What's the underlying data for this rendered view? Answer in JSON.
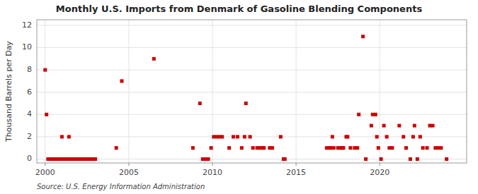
{
  "chart_data": {
    "type": "scatter",
    "title": "Monthly U.S. Imports from Denmark of Gasoline Blending Components",
    "ylabel": "Thousand Barrels per Day",
    "annotations": [
      "Source: U.S. Energy Information Administration"
    ],
    "color": "#cc0000",
    "marker": "square",
    "grid": true,
    "xlim": [
      1999.5,
      2025.2
    ],
    "xticks": [
      2000,
      2005,
      2010,
      2015,
      2020
    ],
    "ylim": [
      -0.35,
      12.5
    ],
    "yticks": [
      0,
      2,
      4,
      6,
      8,
      10,
      12
    ],
    "x": [
      2000.0,
      2000.08,
      2000.17,
      2000.25,
      2000.33,
      2000.42,
      2000.5,
      2000.58,
      2000.67,
      2000.75,
      2000.83,
      2001.0,
      2001.08,
      2001.17,
      2001.25,
      2001.33,
      2001.42,
      2001.5,
      2001.58,
      2001.67,
      2001.75,
      2001.83,
      2001.92,
      2002.0,
      2002.08,
      2002.17,
      2002.25,
      2002.33,
      2002.42,
      2002.5,
      2002.58,
      2002.67,
      2002.75,
      2002.83,
      2002.92,
      2003.0,
      2001.0,
      2001.42,
      2004.25,
      2004.58,
      2006.5,
      2008.83,
      2009.25,
      2009.42,
      2009.58,
      2009.75,
      2009.92,
      2010.08,
      2010.25,
      2010.42,
      2010.58,
      2011.0,
      2011.25,
      2011.5,
      2011.75,
      2011.92,
      2012.0,
      2012.25,
      2012.42,
      2012.67,
      2012.83,
      2013.0,
      2013.08,
      2013.42,
      2013.58,
      2014.08,
      2014.25,
      2014.33,
      2016.83,
      2017.0,
      2017.08,
      2017.17,
      2017.25,
      2017.5,
      2017.67,
      2017.75,
      2017.83,
      2018.0,
      2018.08,
      2018.25,
      2018.5,
      2018.67,
      2018.75,
      2019.0,
      2019.17,
      2019.5,
      2019.58,
      2019.75,
      2019.83,
      2019.92,
      2020.08,
      2020.25,
      2020.42,
      2020.58,
      2020.75,
      2021.17,
      2021.42,
      2021.58,
      2021.83,
      2022.0,
      2022.08,
      2022.25,
      2022.42,
      2022.58,
      2022.83,
      2023.0,
      2023.17,
      2023.33,
      2023.5,
      2023.67,
      2024.0
    ],
    "values": [
      8,
      4,
      0,
      0,
      0,
      0,
      0,
      0,
      0,
      0,
      0,
      0,
      0,
      0,
      0,
      0,
      0,
      0,
      0,
      0,
      0,
      0,
      0,
      0,
      0,
      0,
      0,
      0,
      0,
      0,
      0,
      0,
      0,
      0,
      0,
      0,
      2,
      2,
      1,
      7,
      9,
      1,
      5,
      0,
      0,
      0,
      1,
      2,
      2,
      2,
      2,
      1,
      2,
      2,
      1,
      2,
      5,
      2,
      1,
      1,
      1,
      1,
      1,
      1,
      1,
      2,
      0,
      0,
      1,
      1,
      1,
      2,
      1,
      1,
      1,
      1,
      1,
      2,
      2,
      1,
      1,
      1,
      4,
      11,
      0,
      3,
      4,
      4,
      2,
      1,
      0,
      3,
      2,
      1,
      1,
      3,
      2,
      1,
      0,
      2,
      3,
      0,
      2,
      1,
      1,
      3,
      3,
      1,
      1,
      1,
      0
    ]
  }
}
